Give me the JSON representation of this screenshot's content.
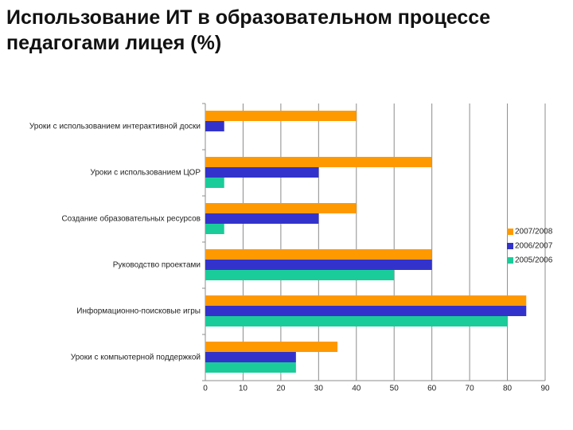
{
  "chart_data": {
    "type": "hbar",
    "title": "Использование ИТ в образовательном процессе педагогами лицея (%)",
    "categories": [
      "Уроки с использованием интерактивной доски",
      "Уроки с использованием ЦОР",
      "Создание образовательных ресурсов",
      "Руководство проектами",
      "Информационно-поисковые игры",
      "Уроки с компьютерной поддержкой"
    ],
    "series": [
      {
        "name": "2007/2008",
        "color": "#ff9900",
        "values": [
          40,
          60,
          40,
          60,
          85,
          35
        ]
      },
      {
        "name": "2006/2007",
        "color": "#3333cc",
        "values": [
          5,
          30,
          30,
          60,
          85,
          24
        ]
      },
      {
        "name": "2005/2006",
        "color": "#1acc99",
        "values": [
          0,
          5,
          5,
          50,
          80,
          24
        ]
      }
    ],
    "xlim": [
      0,
      90
    ],
    "xticks": [
      0,
      10,
      20,
      30,
      40,
      50,
      60,
      70,
      80,
      90
    ],
    "grid": true,
    "legend": "right"
  }
}
